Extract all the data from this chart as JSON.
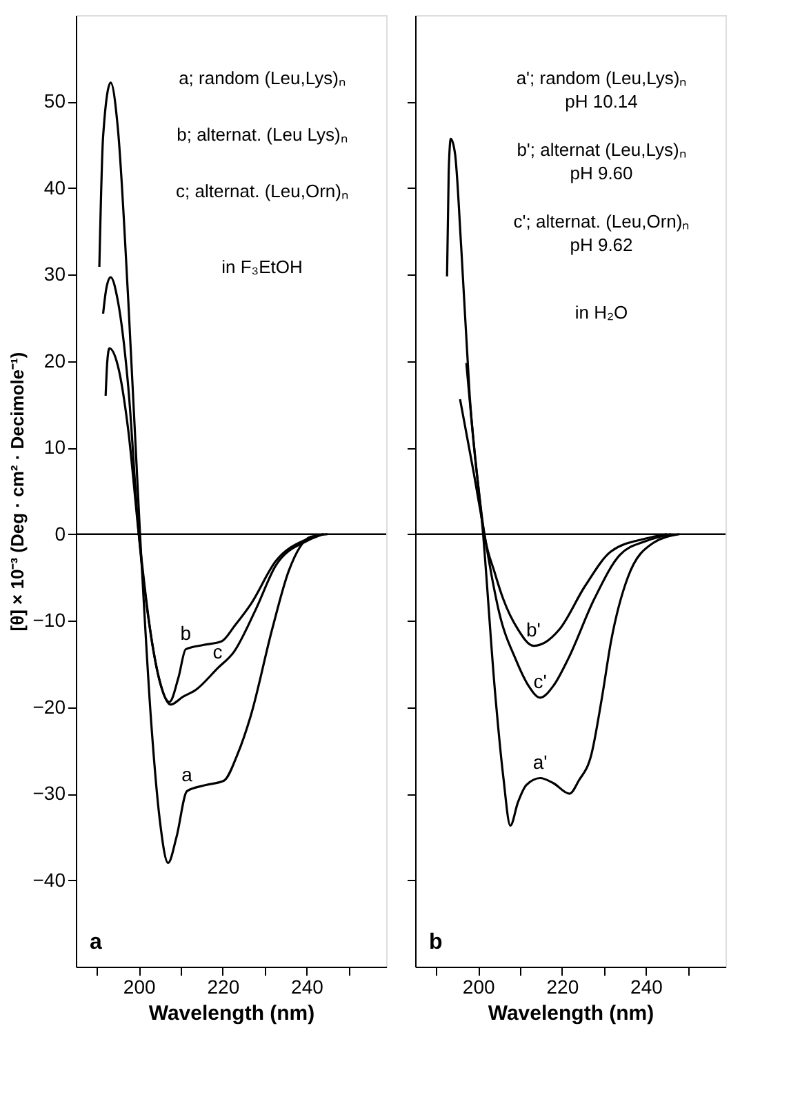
{
  "chart_data": [
    {
      "type": "line",
      "xlabel": "Wavelength (nm)",
      "ylabel": "[θ] × 10⁻³ (Deg · cm² · Decimole⁻¹)",
      "xlim": [
        185,
        259
      ],
      "ylim": [
        -50,
        60
      ],
      "xticks": [
        {
          "value": 190,
          "label": null
        },
        200,
        {
          "value": 210,
          "label": null
        },
        220,
        {
          "value": 230,
          "label": null
        },
        240,
        {
          "value": 250,
          "label": null
        }
      ],
      "yticks": [
        -40,
        -30,
        -20,
        -10,
        0,
        10,
        20,
        30,
        40,
        50
      ],
      "grid": false,
      "legend": false,
      "line_style": "solid",
      "ref_lines": [
        {
          "axis": "y",
          "value": 0,
          "label": null
        }
      ],
      "series": [
        {
          "color": "#000000",
          "x": [
            190.6,
            191.5,
            193.3,
            195,
            197.5,
            200.3,
            203,
            205,
            207,
            209,
            211.5,
            216,
            220.3,
            223.5,
            226.7,
            231.8,
            235.8,
            241,
            245
          ],
          "values": [
            30.9,
            46,
            52.2,
            47,
            27,
            0,
            -22,
            -33,
            -38,
            -35,
            -29.7,
            -29,
            -28.5,
            -25.5,
            -21,
            -11,
            -4.2,
            -0.3,
            0
          ]
        },
        {
          "color": "#000000",
          "x": [
            191.5,
            192.3,
            193.3,
            195,
            197.5,
            200,
            203,
            205,
            207.3,
            209.5,
            211.2,
            215.5,
            219.7,
            223,
            226.7,
            232.7,
            240,
            244
          ],
          "values": [
            25.5,
            28.5,
            29.7,
            27,
            17,
            0,
            -12,
            -17,
            -19.4,
            -16.5,
            -13.3,
            -12.8,
            -12.4,
            -10.5,
            -8.1,
            -3.1,
            -0.6,
            0
          ]
        },
        {
          "color": "#000000",
          "x": [
            192.1,
            192.5,
            193,
            195,
            197.5,
            200,
            203,
            205,
            207.6,
            210.5,
            213.6,
            218.8,
            222.7,
            227.9,
            232.7,
            240,
            244
          ],
          "values": [
            16,
            20,
            21.5,
            19.5,
            12,
            0,
            -12,
            -17,
            -19.7,
            -18.8,
            -18,
            -15.5,
            -13.6,
            -8.7,
            -3.6,
            -0.8,
            0
          ]
        }
      ],
      "annotations": [
        "a; random (Leu,Lys)ₙ",
        "b; alternat. (Leu Lys)ₙ",
        "c; alternat. (Leu,Orn)ₙ",
        "in F₃EtOH",
        {
          "text": "b",
          "x": 211.2,
          "y": -13.3
        },
        {
          "text": "c",
          "x": 218.8,
          "y": -15.5
        },
        {
          "text": "a",
          "x": 211.5,
          "y": -29.7
        },
        "a"
      ]
    },
    {
      "type": "line",
      "xlabel": "Wavelength (nm)",
      "xlim": [
        185,
        259
      ],
      "ylim": [
        -50,
        60
      ],
      "xticks": [
        {
          "value": 190,
          "label": null
        },
        200,
        {
          "value": 210,
          "label": null
        },
        220,
        {
          "value": 230,
          "label": null
        },
        240,
        {
          "value": 250,
          "label": null
        }
      ],
      "yticks": [
        -40,
        -30,
        -20,
        -10,
        0,
        10,
        20,
        30,
        40,
        50
      ],
      "tick_labels": "x",
      "grid": false,
      "legend": false,
      "line_style": "solid",
      "ref_lines": [
        {
          "axis": "y",
          "value": 0,
          "label": null
        }
      ],
      "series": [
        {
          "color": "#000000",
          "x": [
            192.6,
            193,
            193.5,
            194.5,
            196,
            198,
            201.2,
            204,
            206,
            207.7,
            209.5,
            211.5,
            214.8,
            218,
            221.8,
            224,
            227,
            229.5,
            231.7,
            235.7,
            241.8,
            248
          ],
          "values": [
            29.8,
            42,
            45.7,
            44,
            33,
            16,
            0,
            -18,
            -28,
            -33.7,
            -31,
            -29,
            -28.2,
            -28.8,
            -30,
            -28.5,
            -25.5,
            -19,
            -12.4,
            -5,
            -1,
            0
          ]
        },
        {
          "color": "#000000",
          "x": [
            197.2,
            199.5,
            201.5,
            204,
            206,
            209.5,
            213.2,
            216,
            219.4,
            225.5,
            231.7,
            240,
            245
          ],
          "values": [
            19.8,
            8,
            0,
            -4.5,
            -7.5,
            -11,
            -12.9,
            -12.5,
            -11,
            -6,
            -2,
            -0.5,
            0
          ]
        },
        {
          "color": "#000000",
          "x": [
            195.7,
            199,
            201.5,
            203.5,
            205,
            209,
            212,
            214.8,
            218,
            221.5,
            227.7,
            233.8,
            240,
            246
          ],
          "values": [
            15.6,
            7,
            0,
            -5.5,
            -9,
            -14.5,
            -17.5,
            -18.9,
            -17.5,
            -14.4,
            -7.5,
            -2.4,
            -0.8,
            0
          ]
        }
      ],
      "annotations": [
        "a'; random (Leu,Lys)ₙ\npH 10.14",
        "b'; alternat (Leu,Lys)ₙ\npH 9.60",
        "c'; alternat. (Leu,Orn)ₙ\npH 9.62",
        "in H₂O",
        {
          "text": "b'",
          "x": 213.2,
          "y": -12.9
        },
        {
          "text": "c'",
          "x": 214.8,
          "y": -18.9
        },
        {
          "text": "a'",
          "x": 214.8,
          "y": -28.2
        },
        "b"
      ]
    }
  ]
}
